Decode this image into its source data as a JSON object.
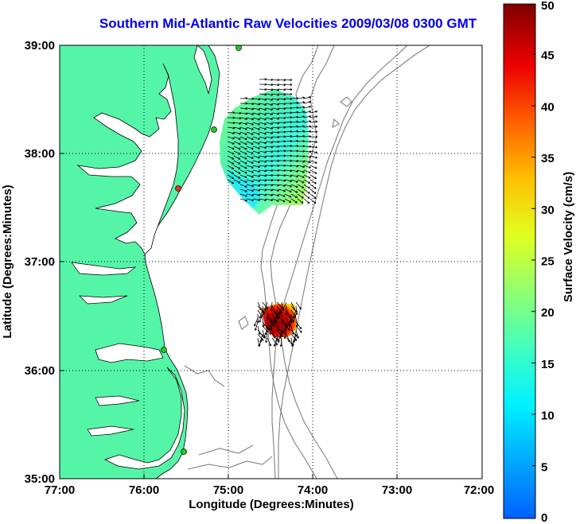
{
  "title": "Southern Mid-Atlantic Raw Velocities 2009/03/08 0300 GMT",
  "axes": {
    "xlabel": "Longitude (Degrees:Minutes)",
    "ylabel": "Latitude (Degrees:Minutes)",
    "x_ticks": [
      "77:00",
      "76:00",
      "75:00",
      "74:00",
      "73:00",
      "72:00"
    ],
    "y_ticks": [
      "39:00",
      "38:00",
      "37:00",
      "36:00",
      "35:00"
    ],
    "grid": "dotted"
  },
  "colorbar": {
    "label": "Surface Velocity (cm/s)",
    "ticks": [
      "0",
      "5",
      "10",
      "15",
      "20",
      "25",
      "30",
      "35",
      "40",
      "45",
      "50"
    ],
    "min": 0,
    "max": 50
  },
  "colors": {
    "land": "#55f5a8",
    "title": "#0000ee",
    "bathymetry": "#808080",
    "station": "#22cc22",
    "station_alert": "#ee3322"
  }
}
